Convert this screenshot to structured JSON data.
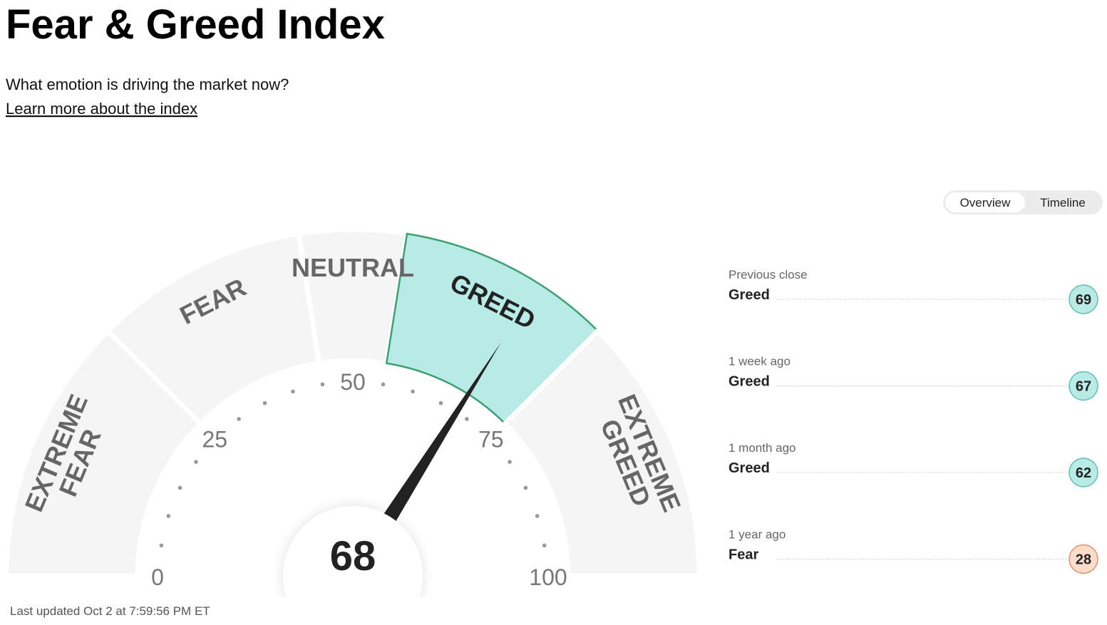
{
  "header": {
    "title": "Fear & Greed Index",
    "subtitle": "What emotion is driving the market now?",
    "link": "Learn more about the index"
  },
  "tabs": [
    "Overview",
    "Timeline"
  ],
  "chart_data": {
    "type": "gauge",
    "value": 68,
    "xlim": [
      0,
      100
    ],
    "xticks": [
      0,
      25,
      50,
      75,
      100
    ],
    "minor_ticks": [
      5,
      10,
      15,
      20,
      30,
      35,
      40,
      45,
      55,
      60,
      65,
      70,
      80,
      85,
      90,
      95
    ],
    "bands": [
      {
        "label": [
          "EXTREME",
          "FEAR"
        ],
        "from": 0,
        "to": 25
      },
      {
        "label": [
          "FEAR"
        ],
        "from": 25,
        "to": 45
      },
      {
        "label": [
          "NEUTRAL"
        ],
        "from": 45,
        "to": 55
      },
      {
        "label": [
          "GREED"
        ],
        "from": 55,
        "to": 75
      },
      {
        "label": [
          "EXTREME",
          "GREED"
        ],
        "from": 75,
        "to": 100
      }
    ],
    "color": "#f5f5f5",
    "highlight_color": "#b8ebe6",
    "highlight_stroke": "#3f9f72",
    "needle_color": "#222222"
  },
  "history": [
    {
      "period": "Previous close",
      "label": "Greed",
      "value": 69,
      "color": "#b8ebe6",
      "stroke": "#5fbfb0"
    },
    {
      "period": "1 week ago",
      "label": "Greed",
      "value": 67,
      "color": "#b8ebe6",
      "stroke": "#5fbfb0"
    },
    {
      "period": "1 month ago",
      "label": "Greed",
      "value": 62,
      "color": "#b8ebe6",
      "stroke": "#5fbfb0"
    },
    {
      "period": "1 year ago",
      "label": "Fear",
      "value": 28,
      "color": "#fbdccb",
      "stroke": "#e0916e"
    }
  ],
  "footer": "Last updated Oct 2 at 7:59:56 PM ET"
}
